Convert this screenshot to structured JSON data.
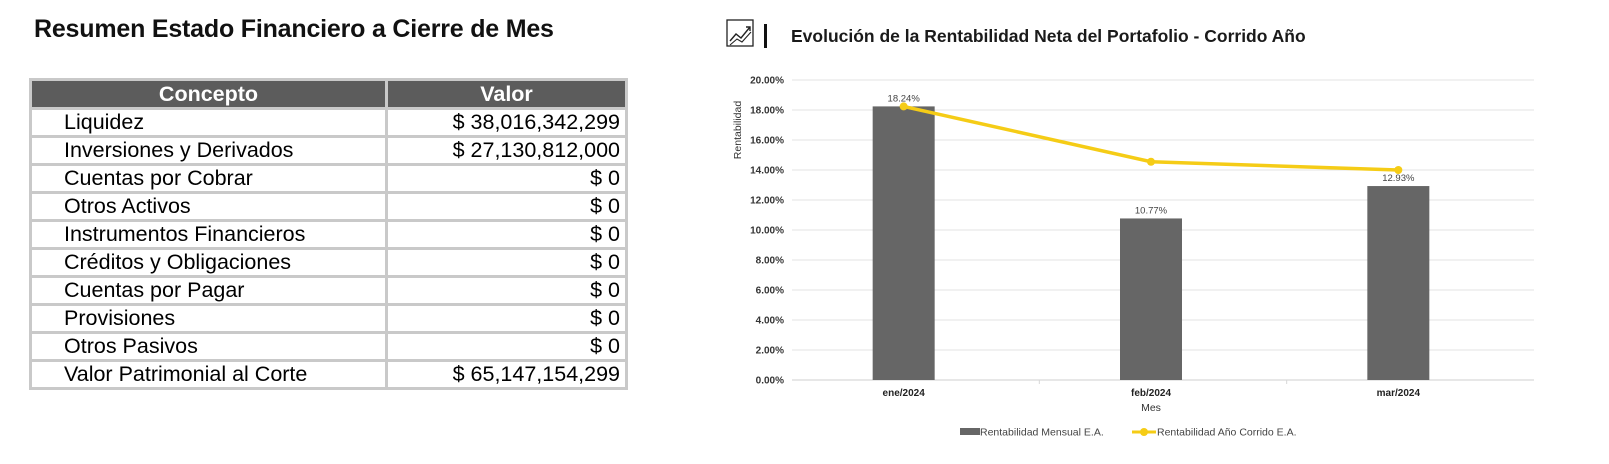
{
  "summary": {
    "title": "Resumen Estado Financiero a Cierre de Mes",
    "headers": [
      "Concepto",
      "Valor"
    ],
    "rows": [
      {
        "concepto": "Liquidez",
        "valor": "$ 38,016,342,299"
      },
      {
        "concepto": "Inversiones y Derivados",
        "valor": "$ 27,130,812,000"
      },
      {
        "concepto": "Cuentas por Cobrar",
        "valor": "$ 0"
      },
      {
        "concepto": "Otros Activos",
        "valor": "$ 0"
      },
      {
        "concepto": "Instrumentos Financieros",
        "valor": "$ 0"
      },
      {
        "concepto": "Créditos y Obligaciones",
        "valor": "$ 0"
      },
      {
        "concepto": "Cuentas por Pagar",
        "valor": "$ 0"
      },
      {
        "concepto": "Provisiones",
        "valor": "$ 0"
      },
      {
        "concepto": "Otros Pasivos",
        "valor": "$ 0"
      },
      {
        "concepto": "Valor Patrimonial al Corte",
        "valor": "$ 65,147,154,299"
      }
    ]
  },
  "chart_header": {
    "title": "Evolución de la Rentabilidad Neta del Portafolio - Corrido Año",
    "icon": "trend-chart-icon"
  },
  "chart_data": {
    "type": "bar",
    "title": "Evolución de la Rentabilidad Neta del Portafolio - Corrido Año",
    "xlabel": "Mes",
    "ylabel": "Rentabilidad",
    "categories": [
      "ene/2024",
      "feb/2024",
      "mar/2024"
    ],
    "ylim": [
      0,
      20
    ],
    "yticks": [
      "0.00%",
      "2.00%",
      "4.00%",
      "6.00%",
      "8.00%",
      "10.00%",
      "12.00%",
      "14.00%",
      "16.00%",
      "18.00%",
      "20.00%"
    ],
    "grid": true,
    "legend_position": "bottom",
    "series": [
      {
        "name": "Rentabilidad Mensual E.A.",
        "type": "bar",
        "color": "#666666",
        "values": [
          18.24,
          10.77,
          12.93
        ],
        "labels": [
          "18.24%",
          "10.77%",
          "12.93%"
        ]
      },
      {
        "name": "Rentabilidad Año Corrido E.A.",
        "type": "line",
        "color": "#f5cc16",
        "values": [
          18.24,
          14.55,
          14.0
        ]
      }
    ]
  }
}
